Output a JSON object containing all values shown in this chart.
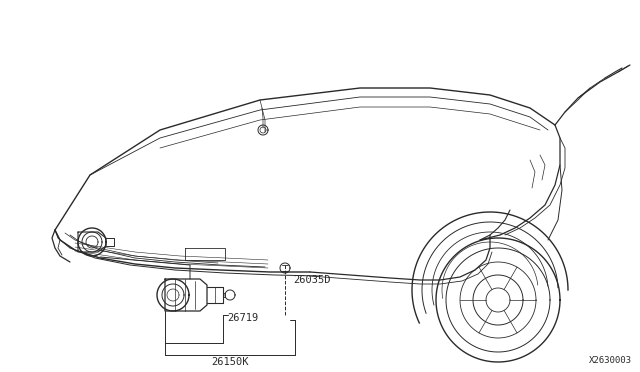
{
  "background_color": "#ffffff",
  "line_color": "#2a2a2a",
  "label_color": "#2a2a2a",
  "diagram_number": "X2630003",
  "labels": {
    "26719": [
      215,
      282
    ],
    "26035D": [
      305,
      295
    ],
    "26150K": [
      248,
      358
    ]
  },
  "figsize": [
    6.4,
    3.72
  ],
  "dpi": 100
}
